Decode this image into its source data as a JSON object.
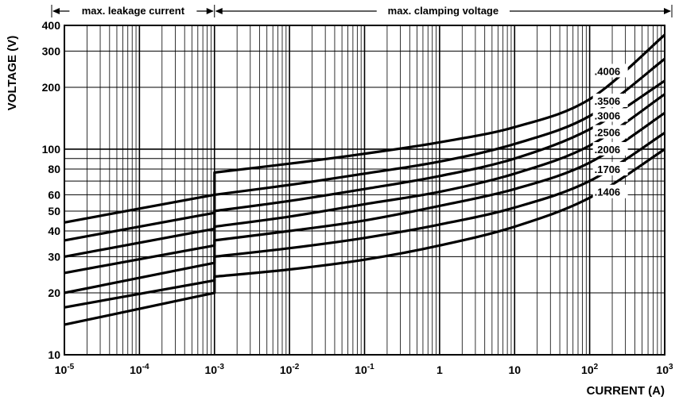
{
  "chart_data": {
    "type": "line",
    "title": "",
    "xlabel": "CURRENT (A)",
    "ylabel": "VOLTAGE (V)",
    "x_scale": "log",
    "y_scale": "log",
    "xlim": [
      1e-05,
      1000
    ],
    "ylim": [
      10,
      400
    ],
    "grid": true,
    "x_ticks": [
      {
        "value": 1e-05,
        "base": "10",
        "exp": "-5"
      },
      {
        "value": 0.0001,
        "base": "10",
        "exp": "-4"
      },
      {
        "value": 0.001,
        "base": "10",
        "exp": "-3"
      },
      {
        "value": 0.01,
        "base": "10",
        "exp": "-2"
      },
      {
        "value": 0.1,
        "base": "10",
        "exp": "-1"
      },
      {
        "value": 1,
        "base": "1",
        "exp": ""
      },
      {
        "value": 10,
        "base": "10",
        "exp": ""
      },
      {
        "value": 100,
        "base": "10",
        "exp": "2"
      },
      {
        "value": 1000,
        "base": "10",
        "exp": "3"
      }
    ],
    "y_ticks": [
      {
        "value": 10,
        "label": "10"
      },
      {
        "value": 20,
        "label": "20"
      },
      {
        "value": 30,
        "label": "30"
      },
      {
        "value": 40,
        "label": "40"
      },
      {
        "value": 50,
        "label": "50"
      },
      {
        "value": 60,
        "label": "60"
      },
      {
        "value": 80,
        "label": "80"
      },
      {
        "value": 100,
        "label": "100"
      },
      {
        "value": 200,
        "label": "200"
      },
      {
        "value": 300,
        "label": "300"
      },
      {
        "value": 400,
        "label": "400"
      }
    ],
    "regions": [
      {
        "label": "max. leakage current",
        "x_range": [
          1e-05,
          0.001
        ]
      },
      {
        "label": "max. clamping voltage",
        "x_range": [
          0.001,
          1000
        ]
      }
    ],
    "series": [
      {
        "name": ".4006",
        "label_at": [
          100,
          240
        ],
        "leakage": {
          "x": [
            1e-05,
            0.001
          ],
          "y": [
            44,
            60
          ]
        },
        "clamping": {
          "x": [
            0.001,
            0.01,
            0.1,
            1,
            10,
            100,
            1000
          ],
          "y": [
            77,
            85,
            95,
            108,
            128,
            175,
            360
          ]
        }
      },
      {
        "name": ".3506",
        "label_at": [
          100,
          172
        ],
        "leakage": {
          "x": [
            1e-05,
            0.001
          ],
          "y": [
            36,
            49
          ]
        },
        "clamping": {
          "x": [
            0.001,
            0.01,
            0.1,
            1,
            10,
            100,
            1000
          ],
          "y": [
            60,
            67,
            76,
            87,
            106,
            145,
            275
          ]
        }
      },
      {
        "name": ".3006",
        "label_at": [
          100,
          146
        ],
        "leakage": {
          "x": [
            1e-05,
            0.001
          ],
          "y": [
            30,
            41
          ]
        },
        "clamping": {
          "x": [
            0.001,
            0.01,
            0.1,
            1,
            10,
            100,
            1000
          ],
          "y": [
            50,
            56,
            64,
            74,
            90,
            125,
            215
          ]
        }
      },
      {
        "name": ".2506",
        "label_at": [
          100,
          121
        ],
        "leakage": {
          "x": [
            1e-05,
            0.001
          ],
          "y": [
            25,
            34
          ]
        },
        "clamping": {
          "x": [
            0.001,
            0.01,
            0.1,
            1,
            10,
            100,
            1000
          ],
          "y": [
            42,
            47,
            54,
            62,
            76,
            104,
            185
          ]
        }
      },
      {
        "name": ".2006",
        "label_at": [
          100,
          100
        ],
        "leakage": {
          "x": [
            1e-05,
            0.001
          ],
          "y": [
            20,
            28
          ]
        },
        "clamping": {
          "x": [
            0.001,
            0.01,
            0.1,
            1,
            10,
            100,
            1000
          ],
          "y": [
            36,
            40,
            45,
            53,
            64,
            86,
            150
          ]
        }
      },
      {
        "name": ".1706",
        "label_at": [
          100,
          80
        ],
        "leakage": {
          "x": [
            1e-05,
            0.001
          ],
          "y": [
            17,
            23
          ]
        },
        "clamping": {
          "x": [
            0.001,
            0.01,
            0.1,
            1,
            10,
            100,
            1000
          ],
          "y": [
            30,
            33,
            37,
            43,
            52,
            70,
            120
          ]
        }
      },
      {
        "name": ".1406",
        "label_at": [
          100,
          62
        ],
        "leakage": {
          "x": [
            1e-05,
            0.001
          ],
          "y": [
            14,
            20
          ]
        },
        "clamping": {
          "x": [
            0.001,
            0.01,
            0.1,
            1,
            10,
            100,
            1000
          ],
          "y": [
            24,
            26,
            29,
            34,
            42,
            58,
            100
          ]
        }
      }
    ]
  }
}
